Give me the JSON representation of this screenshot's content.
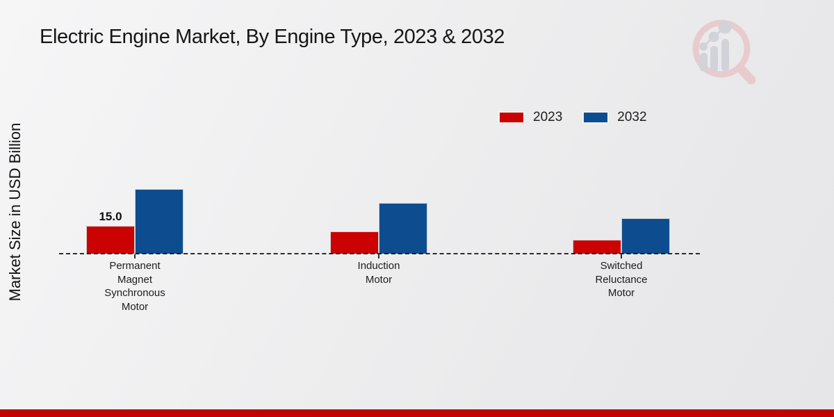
{
  "header": {
    "title": "Electric Engine Market, By Engine Type, 2023 & 2032"
  },
  "chart_data": {
    "type": "bar",
    "title": "Electric Engine Market, By Engine Type, 2023 & 2032",
    "xlabel": "",
    "ylabel": "Market Size in USD Billion",
    "categories": [
      "Permanent Magnet Synchronous Motor",
      "Induction Motor",
      "Switched Reluctance Motor"
    ],
    "tick_lines": [
      [
        "Permanent",
        "Magnet",
        "Synchronous",
        "Motor"
      ],
      [
        "Induction",
        "Motor"
      ],
      [
        "Switched",
        "Reluctance",
        "Motor"
      ]
    ],
    "series": [
      {
        "name": "2023",
        "color": "#cc0101",
        "values": [
          15.0,
          12.0,
          7.5
        ],
        "labels": [
          "15.0",
          null,
          null
        ]
      },
      {
        "name": "2032",
        "color": "#0d4d8f",
        "values": [
          35.0,
          27.5,
          19.0
        ],
        "labels": [
          null,
          null,
          null
        ]
      }
    ],
    "legend": {
      "position": "upper-right",
      "entries": [
        "2023",
        "2032"
      ]
    },
    "grid": false,
    "axis_line": "dashed-baseline"
  },
  "footer": {
    "accent_bar_color": "#c00404"
  },
  "watermark": {
    "name": "market-research-logo",
    "rim_color": "#e7c6ca",
    "bar_color": "#ceced6"
  }
}
